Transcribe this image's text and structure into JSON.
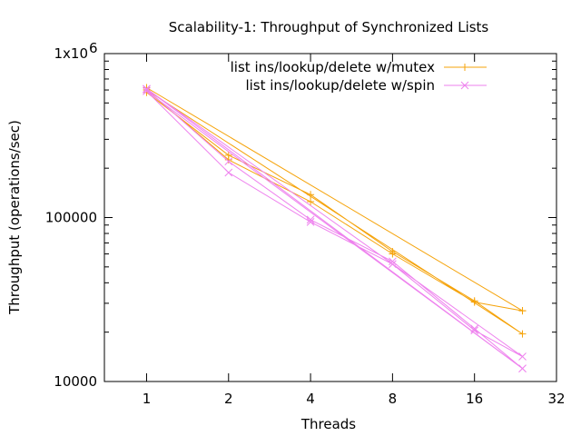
{
  "chart_data": {
    "type": "line",
    "title": "Scalability-1: Throughput of Synchronized Lists",
    "xlabel": "Threads",
    "ylabel": "Throughput (operations/sec)",
    "x_scale": "log2",
    "y_scale": "log10",
    "xlim": [
      0.7,
      32
    ],
    "ylim": [
      10000,
      1000000
    ],
    "x_ticks": [
      1,
      2,
      4,
      8,
      16,
      32
    ],
    "x_tick_labels": [
      "1",
      "2",
      "4",
      "8",
      "16",
      "32"
    ],
    "y_ticks": [
      10000,
      100000,
      1000000
    ],
    "y_tick_labels": [
      "10000",
      "100000",
      "1x10"
    ],
    "y_tick_top_exponent": "6",
    "grid": false,
    "legend_position": "top-right",
    "series": [
      {
        "name": "list ins/lookup/delete w/mutex",
        "color": "#f5a30a",
        "marker": "plus",
        "x": [
          1,
          2,
          4,
          8,
          16,
          24,
          1,
          2,
          4,
          8,
          16,
          24,
          1,
          24
        ],
        "y": [
          580000,
          240000,
          138000,
          62000,
          31000,
          19500,
          600000,
          225000,
          125000,
          60000,
          30500,
          27000,
          620000,
          27000
        ]
      },
      {
        "name": "list ins/lookup/delete w/spin",
        "color": "#ee82ee",
        "marker": "cross",
        "x": [
          1,
          2,
          4,
          8,
          16,
          24,
          1,
          2,
          4,
          8,
          16,
          24,
          1,
          24
        ],
        "y": [
          605000,
          220000,
          97000,
          54000,
          21000,
          12000,
          590000,
          188000,
          94000,
          52000,
          20500,
          14200,
          610000,
          12000
        ]
      }
    ]
  }
}
